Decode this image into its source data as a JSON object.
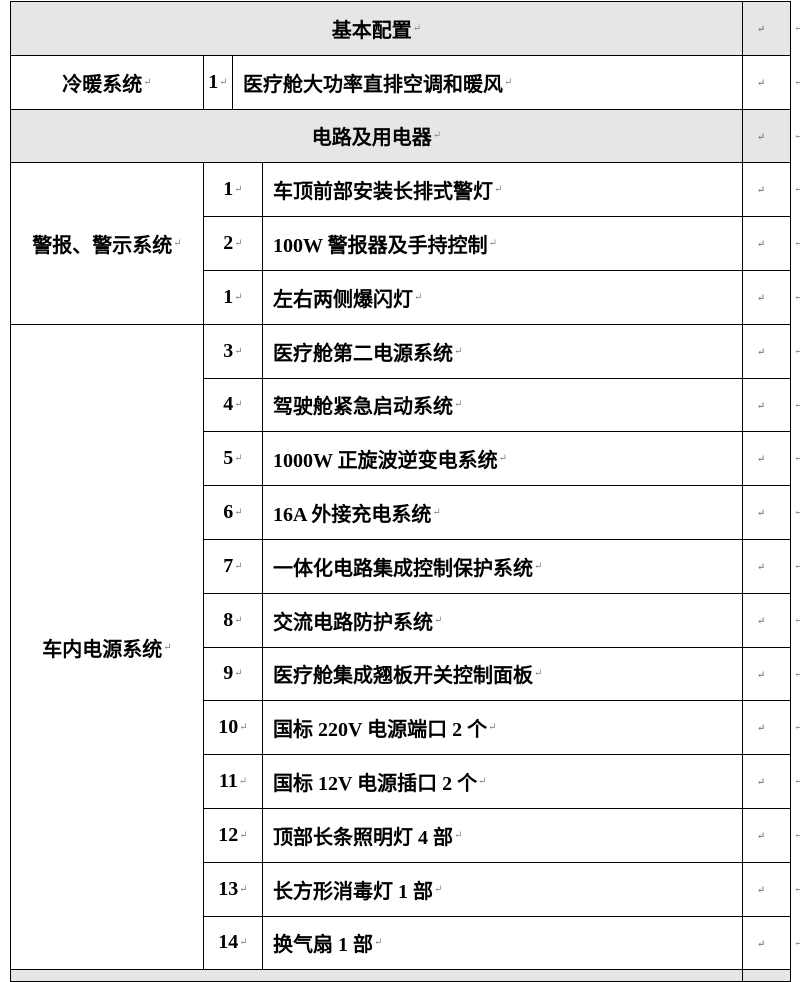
{
  "paragraph_mark": "↵",
  "sections": [
    {
      "type": "header",
      "title": "基本配置"
    },
    {
      "type": "group",
      "category": "冷暖系统",
      "narrow": true,
      "items": [
        {
          "num": "1",
          "text": "医疗舱大功率直排空调和暖风"
        }
      ]
    },
    {
      "type": "header",
      "title": "电路及用电器"
    },
    {
      "type": "group",
      "category": "警报、警示系统",
      "items": [
        {
          "num": "1",
          "text": "车顶前部安装长排式警灯"
        },
        {
          "num": "2",
          "text": "100W 警报器及手持控制"
        },
        {
          "num": "1",
          "text": "左右两侧爆闪灯"
        }
      ]
    },
    {
      "type": "group",
      "category": "车内电源系统",
      "items": [
        {
          "num": "3",
          "text": "医疗舱第二电源系统"
        },
        {
          "num": "4",
          "text": "驾驶舱紧急启动系统"
        },
        {
          "num": "5",
          "text": "1000W 正旋波逆变电系统"
        },
        {
          "num": "6",
          "text": "16A 外接充电系统"
        },
        {
          "num": "7",
          "text": "一体化电路集成控制保护系统"
        },
        {
          "num": "8",
          "text": "交流电路防护系统"
        },
        {
          "num": "9",
          "text": "医疗舱集成翘板开关控制面板"
        },
        {
          "num": "10",
          "text": "国标 220V 电源端口 2 个"
        },
        {
          "num": "11",
          "text": "国标 12V 电源插口 2 个"
        },
        {
          "num": "12",
          "text": "顶部长条照明灯 4 部"
        },
        {
          "num": "13",
          "text": "长方形消毒灯 1 部"
        },
        {
          "num": "14",
          "text": "换气扇 1 部"
        }
      ]
    },
    {
      "type": "header",
      "title": ""
    }
  ]
}
